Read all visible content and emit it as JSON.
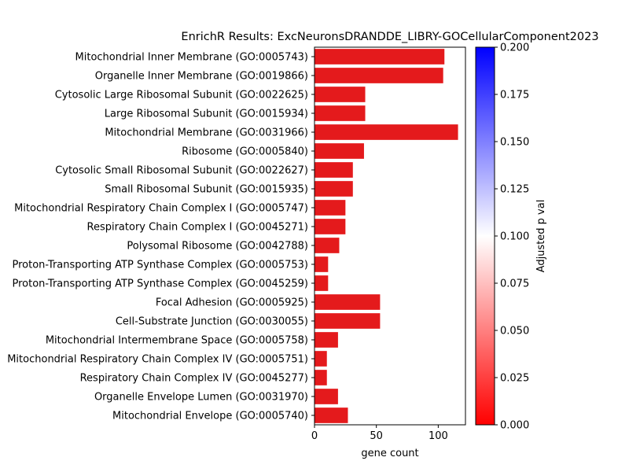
{
  "chart_data": {
    "type": "bar",
    "orientation": "horizontal",
    "title": "EnrichR Results: ExcNeuronsDRANDDE_LIBRY-GOCellularComponent2023",
    "xlabel": "gene count",
    "ylabel": "",
    "xlim": [
      0,
      122
    ],
    "xticks": [
      0,
      50,
      100
    ],
    "grid": false,
    "bar_color": "#e41a1c",
    "categories": [
      "Mitochondrial Inner Membrane (GO:0005743)",
      "Organelle Inner Membrane (GO:0019866)",
      "Cytosolic Large Ribosomal Subunit (GO:0022625)",
      "Large Ribosomal Subunit (GO:0015934)",
      "Mitochondrial Membrane (GO:0031966)",
      "Ribosome (GO:0005840)",
      "Cytosolic Small Ribosomal Subunit (GO:0022627)",
      "Small Ribosomal Subunit (GO:0015935)",
      "Mitochondrial Respiratory Chain Complex I (GO:0005747)",
      "Respiratory Chain Complex I (GO:0045271)",
      "Polysomal Ribosome (GO:0042788)",
      "Proton-Transporting ATP Synthase Complex (GO:0005753)",
      "Proton-Transporting ATP Synthase Complex (GO:0045259)",
      "Focal Adhesion (GO:0005925)",
      "Cell-Substrate Junction (GO:0030055)",
      "Mitochondrial Intermembrane Space (GO:0005758)",
      "Mitochondrial Respiratory Chain Complex IV (GO:0005751)",
      "Respiratory Chain Complex IV (GO:0045277)",
      "Organelle Envelope Lumen (GO:0031970)",
      "Mitochondrial Envelope (GO:0005740)"
    ],
    "values": [
      105,
      104,
      41,
      41,
      116,
      40,
      31,
      31,
      25,
      25,
      20,
      11,
      11,
      53,
      53,
      19,
      10,
      10,
      19,
      27
    ],
    "colorbar": {
      "label": "Adjusted p val",
      "range": [
        0,
        0.2
      ],
      "ticks": [
        "0.000",
        "0.025",
        "0.050",
        "0.075",
        "0.100",
        "0.125",
        "0.150",
        "0.175",
        "0.200"
      ],
      "colors": [
        "#ff0000",
        "#ffffff",
        "#0000ff"
      ]
    }
  }
}
